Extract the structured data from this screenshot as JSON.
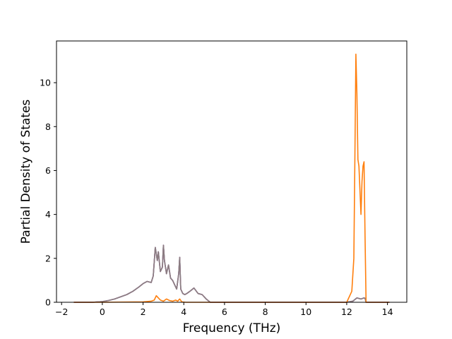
{
  "chart_data": {
    "type": "line",
    "title": "",
    "xlabel": "Frequency (THz)",
    "ylabel": "Partial Density of States",
    "xlim": [
      -2.25,
      14.95
    ],
    "ylim": [
      0,
      11.9
    ],
    "grid": false,
    "legend": "none",
    "x_ticks": [
      -2,
      0,
      2,
      4,
      6,
      8,
      10,
      12,
      14
    ],
    "y_ticks": [
      0,
      2,
      4,
      6,
      8,
      10
    ],
    "x_tick_labels": [
      "−2",
      "0",
      "2",
      "4",
      "6",
      "8",
      "10",
      "12",
      "14"
    ],
    "y_tick_labels": [
      "0",
      "2",
      "4",
      "6",
      "8",
      "10"
    ],
    "series": [
      {
        "color": "#1f77b4",
        "x": [
          -1.4,
          -1.0,
          -0.5,
          0.0,
          0.3,
          0.6,
          0.9,
          1.2,
          1.5,
          1.8,
          2.0,
          2.2,
          2.4,
          2.5,
          2.6,
          2.7,
          2.75,
          2.85,
          2.95,
          3.0,
          3.05,
          3.15,
          3.25,
          3.35,
          3.45,
          3.55,
          3.65,
          3.75,
          3.8,
          3.85,
          3.95,
          4.05,
          4.15,
          4.3,
          4.5,
          4.7,
          4.9,
          5.1,
          5.3,
          6.0,
          8.0,
          10.0,
          12.0,
          12.3,
          12.5,
          12.7,
          12.85,
          12.9,
          12.95,
          13.1,
          14.1
        ],
        "y": [
          0.0,
          0.0,
          0.0,
          0.03,
          0.08,
          0.15,
          0.25,
          0.35,
          0.5,
          0.7,
          0.85,
          0.95,
          0.9,
          1.2,
          2.5,
          1.9,
          2.3,
          1.4,
          1.6,
          2.6,
          1.9,
          1.3,
          1.7,
          1.1,
          1.0,
          0.8,
          0.6,
          1.3,
          2.05,
          0.6,
          0.4,
          0.35,
          0.4,
          0.5,
          0.65,
          0.4,
          0.35,
          0.15,
          0.0,
          0.0,
          0.0,
          0.0,
          0.0,
          0.05,
          0.2,
          0.15,
          0.2,
          0.18,
          0.0,
          0.0,
          0.0
        ]
      },
      {
        "color": "#8c8c8c",
        "x": [
          -1.4,
          -1.0,
          -0.5,
          0.0,
          0.3,
          0.6,
          0.9,
          1.2,
          1.5,
          1.8,
          2.0,
          2.2,
          2.4,
          2.5,
          2.6,
          2.7,
          2.75,
          2.85,
          2.95,
          3.0,
          3.05,
          3.15,
          3.25,
          3.35,
          3.45,
          3.55,
          3.65,
          3.75,
          3.8,
          3.85,
          3.95,
          4.05,
          4.15,
          4.3,
          4.5,
          4.7,
          4.9,
          5.1,
          5.3,
          6.0,
          8.0,
          10.0,
          12.0,
          12.3,
          12.5,
          12.7,
          12.85,
          12.9,
          12.95,
          13.1,
          14.1
        ],
        "y": [
          0.0,
          0.0,
          0.0,
          0.03,
          0.08,
          0.15,
          0.25,
          0.35,
          0.5,
          0.7,
          0.85,
          0.95,
          0.9,
          1.2,
          2.5,
          1.9,
          2.3,
          1.4,
          1.6,
          2.6,
          1.9,
          1.3,
          1.7,
          1.1,
          1.0,
          0.8,
          0.6,
          1.3,
          2.05,
          0.6,
          0.4,
          0.35,
          0.4,
          0.5,
          0.65,
          0.4,
          0.35,
          0.15,
          0.0,
          0.0,
          0.0,
          0.0,
          0.0,
          0.05,
          0.2,
          0.15,
          0.2,
          0.18,
          0.0,
          0.0,
          0.0
        ]
      },
      {
        "color": "#e377c2",
        "x": [
          -1.4,
          -1.0,
          -0.5,
          0.0,
          0.3,
          0.6,
          0.9,
          1.2,
          1.5,
          1.8,
          2.0,
          2.2,
          2.4,
          2.5,
          2.6,
          2.7,
          2.75,
          2.85,
          2.95,
          3.0,
          3.05,
          3.15,
          3.25,
          3.35,
          3.45,
          3.55,
          3.65,
          3.75,
          3.8,
          3.85,
          3.95,
          4.05,
          4.15,
          4.3,
          4.5,
          4.7,
          4.9,
          5.1,
          5.3,
          6.0,
          8.0,
          10.0,
          12.0,
          12.3,
          12.5,
          12.7,
          12.85,
          12.9,
          12.95,
          13.1,
          14.1
        ],
        "y": [
          0.0,
          0.0,
          0.0,
          0.03,
          0.08,
          0.15,
          0.25,
          0.35,
          0.5,
          0.7,
          0.85,
          0.95,
          0.9,
          1.2,
          2.5,
          1.9,
          2.3,
          1.4,
          1.6,
          2.6,
          1.9,
          1.3,
          1.7,
          1.1,
          1.0,
          0.8,
          0.6,
          1.3,
          2.05,
          0.6,
          0.4,
          0.35,
          0.4,
          0.5,
          0.65,
          0.4,
          0.35,
          0.15,
          0.0,
          0.0,
          0.0,
          0.0,
          0.0,
          0.05,
          0.2,
          0.15,
          0.2,
          0.18,
          0.0,
          0.0,
          0.0
        ]
      },
      {
        "color": "#8a7d80",
        "x": [
          -1.4,
          -1.0,
          -0.5,
          0.0,
          0.3,
          0.6,
          0.9,
          1.2,
          1.5,
          1.8,
          2.0,
          2.2,
          2.4,
          2.5,
          2.6,
          2.7,
          2.75,
          2.85,
          2.95,
          3.0,
          3.05,
          3.15,
          3.25,
          3.35,
          3.45,
          3.55,
          3.65,
          3.75,
          3.8,
          3.85,
          3.95,
          4.05,
          4.15,
          4.3,
          4.5,
          4.7,
          4.9,
          5.1,
          5.3,
          6.0,
          8.0,
          10.0,
          12.0,
          12.3,
          12.5,
          12.7,
          12.85,
          12.9,
          12.95,
          13.1,
          14.1
        ],
        "y": [
          0.0,
          0.0,
          0.0,
          0.03,
          0.08,
          0.15,
          0.25,
          0.35,
          0.5,
          0.7,
          0.85,
          0.95,
          0.9,
          1.2,
          2.5,
          1.9,
          2.3,
          1.4,
          1.6,
          2.6,
          1.9,
          1.3,
          1.7,
          1.1,
          1.0,
          0.8,
          0.6,
          1.3,
          2.05,
          0.6,
          0.4,
          0.35,
          0.4,
          0.5,
          0.65,
          0.4,
          0.35,
          0.15,
          0.0,
          0.0,
          0.0,
          0.0,
          0.0,
          0.05,
          0.2,
          0.15,
          0.2,
          0.18,
          0.0,
          0.0,
          0.0
        ]
      },
      {
        "color": "#ff7f0e",
        "x": [
          -1.4,
          0.0,
          2.0,
          2.4,
          2.55,
          2.65,
          2.75,
          2.85,
          3.0,
          3.15,
          3.3,
          3.45,
          3.6,
          3.7,
          3.8,
          3.9,
          4.1,
          5.0,
          8.0,
          12.0,
          12.25,
          12.35,
          12.4,
          12.45,
          12.5,
          12.55,
          12.6,
          12.7,
          12.75,
          12.8,
          12.85,
          12.9,
          12.95,
          13.0,
          13.1,
          14.1
        ],
        "y": [
          0.0,
          0.0,
          0.02,
          0.05,
          0.1,
          0.3,
          0.2,
          0.1,
          0.05,
          0.15,
          0.08,
          0.05,
          0.1,
          0.05,
          0.15,
          0.02,
          0.0,
          0.0,
          0.0,
          0.0,
          0.5,
          2.0,
          6.5,
          11.3,
          9.5,
          6.5,
          6.2,
          4.0,
          5.5,
          6.2,
          6.4,
          3.0,
          0.0,
          0.0,
          0.0,
          0.0
        ]
      }
    ]
  }
}
